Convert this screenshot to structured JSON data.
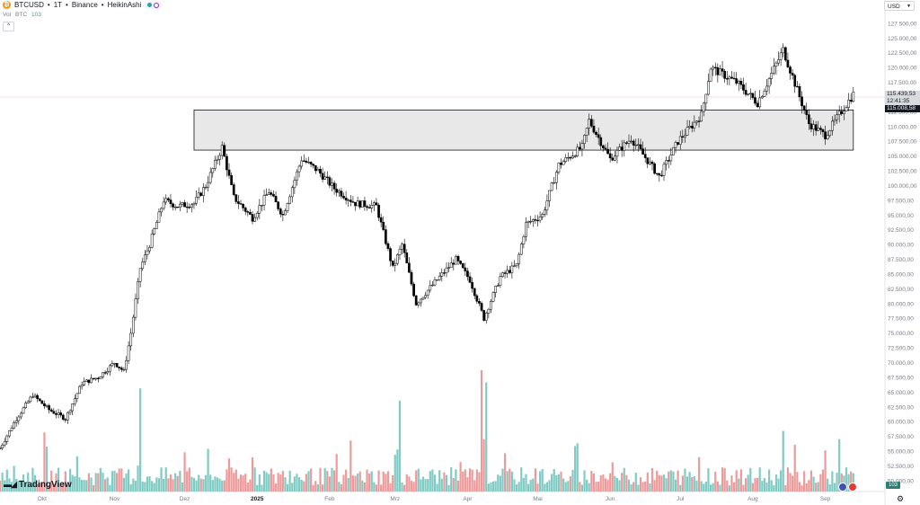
{
  "legend": {
    "symbol": "BTCUSD",
    "timeframe": "1T",
    "exchange": "Binance",
    "chart_style": "HeikinAshi",
    "separator": " • ",
    "volume_label": "Vol",
    "volume_currency": "BTC",
    "volume_value": "103"
  },
  "currency": "USD",
  "price_tags": {
    "last_price": "115.439,53",
    "countdown": "12:41:35",
    "box_high": "115.008,58"
  },
  "volume_tag": "103",
  "logo_text": "TradingView",
  "colors": {
    "candle_up_fill": "#ffffff",
    "candle_down_fill": "#000000",
    "candle_outline": "#000000",
    "volume_up": "#80cbc4",
    "volume_down": "#ef9a9a",
    "zone_fill": "#e8e8e8",
    "zone_border": "#131722"
  },
  "chart_data": {
    "type": "candlestick",
    "chart_style": "Heikin Ashi",
    "interval": "1 day",
    "y_axis": {
      "side": "right",
      "min": 48000,
      "max": 129000,
      "tick_labels": [
        "127.500,00",
        "125.000,00",
        "122.500,00",
        "120.000,00",
        "117.500,00",
        "115.000,00",
        "112.500,00",
        "110.000,00",
        "107.500,00",
        "105.000,00",
        "102.500,00",
        "100.000,00",
        "97.500,00",
        "95.000,00",
        "92.500,00",
        "90.000,00",
        "87.500,00",
        "85.000,00",
        "82.500,00",
        "80.000,00",
        "77.500,00",
        "75.000,00",
        "72.500,00",
        "70.000,00",
        "67.500,00",
        "65.000,00",
        "62.500,00",
        "60.000,00",
        "57.500,00",
        "55.000,00",
        "52.500,00",
        "50.000,00"
      ]
    },
    "x_axis": {
      "labels": [
        "Okt",
        "Nov",
        "Dez",
        "2025",
        "Feb",
        "Mrz",
        "Apr",
        "Mai",
        "Jun",
        "Jul",
        "Aug",
        "Sep"
      ],
      "months": [
        "2024-10",
        "2024-11",
        "2024-12",
        "2025-01",
        "2025-02",
        "2025-03",
        "2025-04",
        "2025-05",
        "2025-06",
        "2025-07",
        "2025-08",
        "2025-09"
      ]
    },
    "zone": {
      "low": 106000,
      "high": 112800,
      "start": "2024-12-05",
      "end": "2025-09-13"
    },
    "horizontal_line": 115000,
    "close_path": [
      {
        "date": "2024-09-13",
        "close": 55500
      },
      {
        "date": "2024-09-20",
        "close": 60500
      },
      {
        "date": "2024-09-27",
        "close": 64500
      },
      {
        "date": "2024-10-04",
        "close": 62000
      },
      {
        "date": "2024-10-11",
        "close": 60500
      },
      {
        "date": "2024-10-18",
        "close": 66500
      },
      {
        "date": "2024-10-25",
        "close": 67500
      },
      {
        "date": "2024-11-01",
        "close": 70000
      },
      {
        "date": "2024-11-05",
        "close": 68500
      },
      {
        "date": "2024-11-08",
        "close": 75000
      },
      {
        "date": "2024-11-12",
        "close": 86000
      },
      {
        "date": "2024-11-16",
        "close": 90000
      },
      {
        "date": "2024-11-22",
        "close": 97500
      },
      {
        "date": "2024-11-28",
        "close": 96500
      },
      {
        "date": "2024-12-05",
        "close": 97000
      },
      {
        "date": "2024-12-10",
        "close": 100000
      },
      {
        "date": "2024-12-17",
        "close": 106500
      },
      {
        "date": "2024-12-22",
        "close": 98000
      },
      {
        "date": "2024-12-30",
        "close": 94500
      },
      {
        "date": "2025-01-06",
        "close": 99000
      },
      {
        "date": "2025-01-12",
        "close": 95000
      },
      {
        "date": "2025-01-20",
        "close": 104500
      },
      {
        "date": "2025-01-27",
        "close": 102500
      },
      {
        "date": "2025-02-03",
        "close": 99500
      },
      {
        "date": "2025-02-12",
        "close": 97000
      },
      {
        "date": "2025-02-21",
        "close": 96500
      },
      {
        "date": "2025-02-28",
        "close": 86000
      },
      {
        "date": "2025-03-04",
        "close": 90000
      },
      {
        "date": "2025-03-10",
        "close": 80000
      },
      {
        "date": "2025-03-20",
        "close": 84500
      },
      {
        "date": "2025-03-27",
        "close": 87500
      },
      {
        "date": "2025-04-02",
        "close": 84000
      },
      {
        "date": "2025-04-08",
        "close": 77500
      },
      {
        "date": "2025-04-15",
        "close": 84500
      },
      {
        "date": "2025-04-22",
        "close": 86500
      },
      {
        "date": "2025-04-26",
        "close": 93500
      },
      {
        "date": "2025-05-03",
        "close": 95000
      },
      {
        "date": "2025-05-10",
        "close": 103500
      },
      {
        "date": "2025-05-20",
        "close": 106500
      },
      {
        "date": "2025-05-23",
        "close": 111000
      },
      {
        "date": "2025-06-01",
        "close": 104500
      },
      {
        "date": "2025-06-10",
        "close": 108000
      },
      {
        "date": "2025-06-22",
        "close": 101500
      },
      {
        "date": "2025-06-30",
        "close": 107500
      },
      {
        "date": "2025-07-10",
        "close": 112000
      },
      {
        "date": "2025-07-14",
        "close": 120000
      },
      {
        "date": "2025-07-25",
        "close": 117500
      },
      {
        "date": "2025-08-03",
        "close": 114000
      },
      {
        "date": "2025-08-14",
        "close": 123000
      },
      {
        "date": "2025-08-25",
        "close": 110500
      },
      {
        "date": "2025-09-01",
        "close": 108500
      },
      {
        "date": "2025-09-13",
        "close": 115500
      }
    ],
    "volume_spikes": [
      {
        "date": "2024-11-12",
        "volume_level": 0.85
      },
      {
        "date": "2025-03-03",
        "volume_level": 0.75
      },
      {
        "date": "2025-04-07",
        "volume_level": 1.0
      },
      {
        "date": "2025-04-09",
        "volume_level": 0.9
      },
      {
        "date": "2025-08-14",
        "volume_level": 0.5
      }
    ]
  }
}
